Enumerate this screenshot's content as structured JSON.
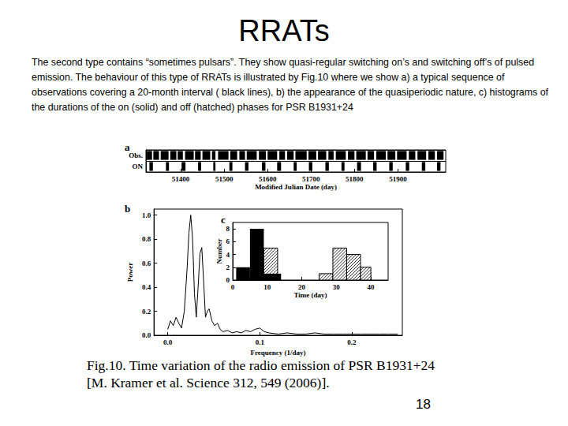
{
  "slide": {
    "title": "RRATs",
    "text": "The second type contains “sometimes pulsars”. They show quasi-regular switching on’s and switching off’s of pulsed emission. The behaviour of this type of RRATs is illustrated by Fig.10 where we show a) a typical sequence of observations covering a 20-month interval ( black lines), b) the appearance of the  quasiperiodic nature, c) histograms of the durations of the on (solid) and off (hatched) phases  for PSR B1931+24",
    "caption": [
      "Fig.10. Time variation of the radio emission of PSR B1931+24",
      "[M. Kramer et al.  Science 312, 549 (2006)]."
    ],
    "page_number": "18"
  },
  "chart_data": [
    {
      "type": "timeline",
      "title": "a",
      "xlabel": "Modified Julian Date (day)",
      "categories": [
        "Obs.",
        "ON"
      ],
      "series": [
        {
          "color": "#000000",
          "values": [
            [
              51322,
              51334
            ],
            [
              51337,
              51350
            ],
            [
              51354,
              51372
            ],
            [
              51376,
              51390
            ],
            [
              51393,
              51405
            ],
            [
              51410,
              51430
            ],
            [
              51433,
              51446
            ],
            [
              51450,
              51468
            ],
            [
              51472,
              51480
            ],
            [
              51486,
              51510
            ],
            [
              51514,
              51530
            ],
            [
              51535,
              51548
            ],
            [
              51552,
              51575
            ],
            [
              51580,
              51596
            ],
            [
              51600,
              51622
            ],
            [
              51627,
              51640
            ],
            [
              51645,
              51660
            ],
            [
              51664,
              51690
            ],
            [
              51694,
              51712
            ],
            [
              51716,
              51735
            ],
            [
              51740,
              51752
            ],
            [
              51757,
              51780
            ],
            [
              51785,
              51800
            ],
            [
              51804,
              51826
            ],
            [
              51830,
              51845
            ],
            [
              51850,
              51872
            ],
            [
              51876,
              51894
            ],
            [
              51898,
              51920
            ],
            [
              51925,
              51940
            ],
            [
              51945,
              51965
            ],
            [
              51970,
              51985
            ],
            [
              51990,
              52005
            ]
          ]
        },
        {
          "color": "#000000",
          "values": [
            [
              51328,
              51336
            ],
            [
              51366,
              51373
            ],
            [
              51402,
              51411
            ],
            [
              51440,
              51447
            ],
            [
              51475,
              51480
            ],
            [
              51512,
              51519
            ],
            [
              51548,
              51556
            ],
            [
              51587,
              51595
            ],
            [
              51622,
              51631
            ],
            [
              51660,
              51667
            ],
            [
              51695,
              51703
            ],
            [
              51733,
              51741
            ],
            [
              51770,
              51777
            ],
            [
              51806,
              51815
            ],
            [
              51843,
              51851
            ],
            [
              51880,
              51888
            ],
            [
              51918,
              51926
            ],
            [
              51955,
              51963
            ],
            [
              51990,
              51998
            ]
          ]
        }
      ],
      "xlim": [
        51320,
        52010
      ],
      "xticks": [
        51400,
        51500,
        51600,
        51700,
        51800,
        51900
      ]
    },
    {
      "type": "line",
      "title": "b",
      "xlabel": "Frequency (1/day)",
      "ylabel": "Power",
      "color": "#000000",
      "x": [
        0,
        0.003,
        0.006,
        0.009,
        0.012,
        0.015,
        0.018,
        0.021,
        0.023,
        0.025,
        0.027,
        0.029,
        0.031,
        0.033,
        0.035,
        0.037,
        0.039,
        0.041,
        0.043,
        0.045,
        0.048,
        0.051,
        0.054,
        0.057,
        0.06,
        0.065,
        0.07,
        0.075,
        0.08,
        0.085,
        0.09,
        0.095,
        0.1,
        0.105,
        0.11,
        0.12,
        0.13,
        0.14,
        0.15,
        0.16,
        0.17,
        0.18,
        0.19,
        0.2,
        0.21,
        0.22,
        0.23,
        0.24,
        0.25
      ],
      "values": [
        0.05,
        0.12,
        0.08,
        0.15,
        0.1,
        0.06,
        0.2,
        0.55,
        0.85,
        1.0,
        0.8,
        0.35,
        0.15,
        0.4,
        0.68,
        0.73,
        0.45,
        0.15,
        0.2,
        0.22,
        0.12,
        0.08,
        0.1,
        0.05,
        0.03,
        0.04,
        0.02,
        0.03,
        0.02,
        0.04,
        0.03,
        0.05,
        0.06,
        0.03,
        0.02,
        0.01,
        0.02,
        0.01,
        0.01,
        0.02,
        0.01,
        0.01,
        0.01,
        0.01,
        0.01,
        0.01,
        0.01,
        0.01,
        0.01
      ],
      "xlim": [
        -0.015,
        0.255
      ],
      "xticks": [
        {
          "value": 0,
          "label": "0.0"
        },
        0.1,
        0.2
      ],
      "ylim": [
        0,
        1.05
      ],
      "yticks": [
        {
          "value": 0,
          "label": "0.0"
        },
        0.2,
        0.4,
        0.6,
        0.8,
        {
          "value": 1,
          "label": "1.0"
        }
      ]
    },
    {
      "type": "histogram",
      "title": "c",
      "xlabel": "Time (day)",
      "ylabel": "Number",
      "series": [
        {
          "color": "#000000",
          "marker": "hatched",
          "bins": [
            9,
            13,
            17,
            21,
            25,
            29,
            33,
            37,
            40
          ],
          "values": [
            5,
            0,
            0,
            0,
            1,
            5,
            4,
            2
          ]
        },
        {
          "color": "#000000",
          "marker": "solid",
          "bins": [
            1,
            5,
            9,
            14
          ],
          "values": [
            2,
            8,
            1
          ]
        }
      ],
      "xlim": [
        0,
        45
      ],
      "xticks": [
        0,
        10,
        20,
        30,
        40
      ],
      "ylim": [
        0,
        9
      ],
      "yticks": [
        0,
        2,
        4,
        6,
        8
      ]
    }
  ]
}
